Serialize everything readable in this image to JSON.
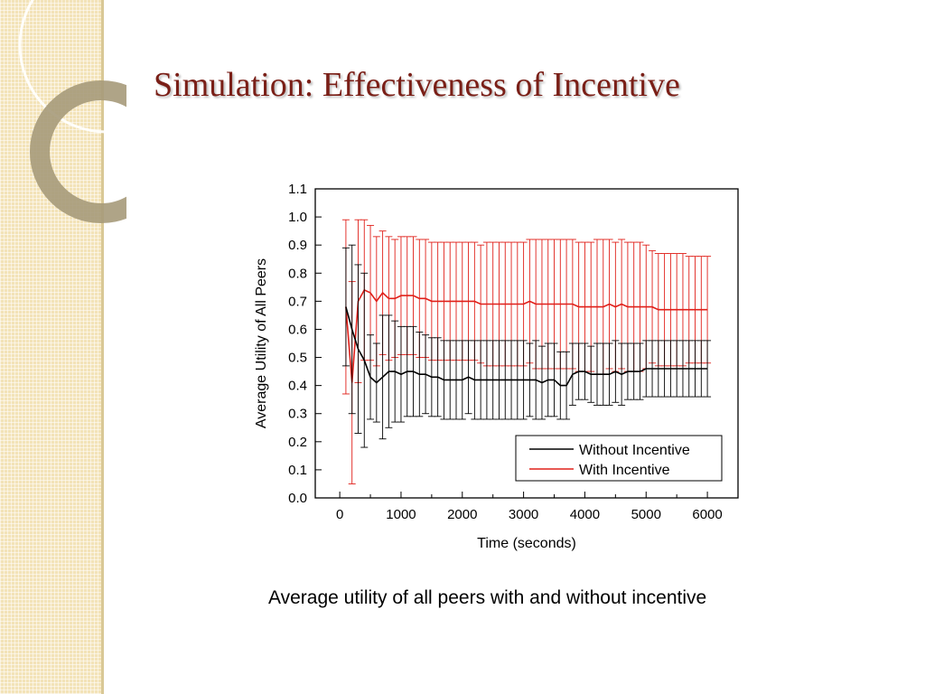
{
  "slide": {
    "title": "Simulation: Effectiveness of Incentive",
    "caption": "Average utility of all peers with and without incentive"
  },
  "chart_data": {
    "type": "line",
    "xlabel": "Time (seconds)",
    "ylabel": "Average Utility of All Peers",
    "xlim": [
      -400,
      6500
    ],
    "ylim": [
      0.0,
      1.1
    ],
    "xticks": [
      0,
      1000,
      2000,
      3000,
      4000,
      5000,
      6000
    ],
    "xtick_labels": [
      "0",
      "1000",
      "2000",
      "3000",
      "4000",
      "5000",
      "6000"
    ],
    "yticks": [
      0.0,
      0.1,
      0.2,
      0.3,
      0.4,
      0.5,
      0.6,
      0.7,
      0.8,
      0.9,
      1.0,
      1.1
    ],
    "ytick_labels": [
      "0.0",
      "0.1",
      "0.2",
      "0.3",
      "0.4",
      "0.5",
      "0.6",
      "0.7",
      "0.8",
      "0.9",
      "1.0",
      "1.1"
    ],
    "grid": false,
    "legend_position": "bottom-right",
    "x": [
      100,
      200,
      300,
      400,
      500,
      600,
      700,
      800,
      900,
      1000,
      1100,
      1200,
      1300,
      1400,
      1500,
      1600,
      1700,
      1800,
      1900,
      2000,
      2100,
      2200,
      2300,
      2400,
      2500,
      2600,
      2700,
      2800,
      2900,
      3000,
      3100,
      3200,
      3300,
      3400,
      3500,
      3600,
      3700,
      3800,
      3900,
      4000,
      4100,
      4200,
      4300,
      4400,
      4500,
      4600,
      4700,
      4800,
      4900,
      5000,
      5100,
      5200,
      5300,
      5400,
      5500,
      5600,
      5700,
      5800,
      5900,
      6000
    ],
    "series": [
      {
        "name": "Without Incentive",
        "color": "#000000",
        "values": [
          0.68,
          0.6,
          0.53,
          0.49,
          0.43,
          0.41,
          0.43,
          0.45,
          0.45,
          0.44,
          0.45,
          0.45,
          0.44,
          0.44,
          0.43,
          0.43,
          0.42,
          0.42,
          0.42,
          0.42,
          0.43,
          0.42,
          0.42,
          0.42,
          0.42,
          0.42,
          0.42,
          0.42,
          0.42,
          0.42,
          0.42,
          0.42,
          0.41,
          0.42,
          0.42,
          0.4,
          0.4,
          0.44,
          0.45,
          0.45,
          0.44,
          0.44,
          0.44,
          0.44,
          0.45,
          0.44,
          0.45,
          0.45,
          0.45,
          0.46,
          0.46,
          0.46,
          0.46,
          0.46,
          0.46,
          0.46,
          0.46,
          0.46,
          0.46,
          0.46
        ],
        "errors": [
          0.21,
          0.3,
          0.3,
          0.31,
          0.15,
          0.14,
          0.22,
          0.2,
          0.18,
          0.17,
          0.16,
          0.16,
          0.15,
          0.14,
          0.14,
          0.14,
          0.14,
          0.14,
          0.14,
          0.14,
          0.13,
          0.14,
          0.14,
          0.14,
          0.14,
          0.14,
          0.14,
          0.14,
          0.14,
          0.14,
          0.13,
          0.14,
          0.13,
          0.13,
          0.13,
          0.12,
          0.12,
          0.11,
          0.1,
          0.1,
          0.1,
          0.11,
          0.11,
          0.11,
          0.11,
          0.11,
          0.1,
          0.1,
          0.1,
          0.1,
          0.1,
          0.1,
          0.1,
          0.1,
          0.1,
          0.1,
          0.1,
          0.1,
          0.1,
          0.1
        ]
      },
      {
        "name": "With Incentive",
        "color": "#e0201a",
        "values": [
          0.68,
          0.41,
          0.7,
          0.74,
          0.73,
          0.7,
          0.73,
          0.71,
          0.71,
          0.72,
          0.72,
          0.72,
          0.71,
          0.71,
          0.7,
          0.7,
          0.7,
          0.7,
          0.7,
          0.7,
          0.7,
          0.7,
          0.69,
          0.69,
          0.69,
          0.69,
          0.69,
          0.69,
          0.69,
          0.69,
          0.7,
          0.69,
          0.69,
          0.69,
          0.69,
          0.69,
          0.69,
          0.69,
          0.68,
          0.68,
          0.68,
          0.68,
          0.68,
          0.69,
          0.68,
          0.69,
          0.68,
          0.68,
          0.68,
          0.68,
          0.68,
          0.67,
          0.67,
          0.67,
          0.67,
          0.67,
          0.67,
          0.67,
          0.67,
          0.67
        ],
        "errors": [
          0.31,
          0.36,
          0.29,
          0.25,
          0.24,
          0.23,
          0.22,
          0.22,
          0.21,
          0.21,
          0.21,
          0.21,
          0.21,
          0.21,
          0.21,
          0.21,
          0.21,
          0.21,
          0.21,
          0.21,
          0.21,
          0.21,
          0.21,
          0.22,
          0.22,
          0.22,
          0.22,
          0.22,
          0.22,
          0.22,
          0.22,
          0.23,
          0.23,
          0.23,
          0.23,
          0.23,
          0.23,
          0.23,
          0.23,
          0.23,
          0.23,
          0.24,
          0.24,
          0.23,
          0.23,
          0.23,
          0.23,
          0.23,
          0.23,
          0.22,
          0.2,
          0.2,
          0.2,
          0.2,
          0.2,
          0.2,
          0.19,
          0.19,
          0.19,
          0.19
        ]
      }
    ]
  }
}
